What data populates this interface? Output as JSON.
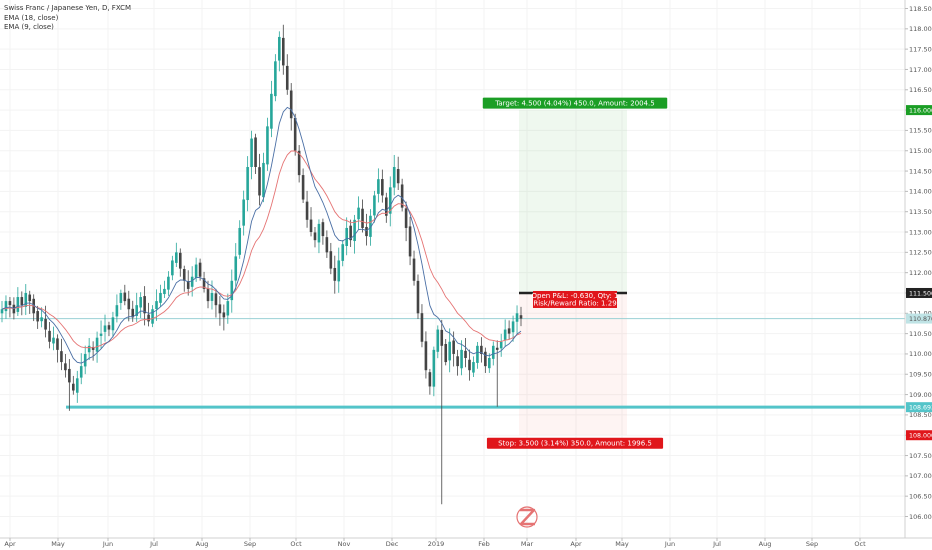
{
  "legend": {
    "symbol": "Swiss Franc / Japanese Yen, D, FXCM",
    "ema1": "EMA (18, close)",
    "ema2": "EMA (9, close)"
  },
  "colors": {
    "up": "#26a69a",
    "down": "#444444",
    "ema18": "#e57373",
    "ema9": "#4a6fa5",
    "target": "#1b9e25",
    "stop": "#e0161b",
    "support": "#53c4c9",
    "current_line": "#9ad1d4"
  },
  "chart_data": {
    "type": "candlestick",
    "x_ticks": [
      "Apr",
      "May",
      "Jun",
      "Jul",
      "Aug",
      "Sep",
      "Oct",
      "Nov",
      "Dec",
      "2019",
      "Feb",
      "Mar",
      "Apr",
      "May",
      "Jun",
      "Jul",
      "Aug",
      "Sep",
      "Oct"
    ],
    "y_ticks": [
      "106.000",
      "106.500",
      "107.000",
      "107.500",
      "108.000",
      "108.500",
      "109.000",
      "109.500",
      "110.000",
      "110.500",
      "111.000",
      "111.500",
      "112.000",
      "112.500",
      "113.000",
      "113.500",
      "114.000",
      "114.500",
      "115.000",
      "115.500",
      "116.000",
      "116.500",
      "117.000",
      "117.500",
      "118.000",
      "118.500"
    ],
    "ylim": [
      105.75,
      118.75
    ],
    "series": [
      {
        "name": "Swiss Franc / Japanese Yen",
        "kind": "candles",
        "close": [
          111.1,
          111.3,
          111.2,
          111.0,
          111.4,
          111.2,
          111.5,
          111.3,
          111.0,
          110.8,
          110.9,
          110.6,
          110.3,
          110.4,
          110.1,
          109.8,
          109.6,
          109.3,
          109.1,
          109.4,
          109.7,
          110.0,
          110.2,
          110.1,
          110.4,
          110.5,
          110.7,
          110.6,
          110.9,
          111.2,
          111.5,
          111.3,
          111.1,
          110.9,
          111.2,
          111.4,
          111.0,
          110.8,
          111.1,
          111.3,
          111.5,
          111.6,
          111.9,
          112.3,
          112.5,
          112.1,
          111.8,
          111.6,
          111.9,
          112.2,
          111.9,
          111.6,
          111.3,
          111.5,
          111.2,
          111.0,
          110.9,
          111.3,
          111.8,
          112.4,
          113.1,
          113.8,
          114.6,
          115.3,
          114.6,
          113.9,
          114.7,
          115.6,
          116.4,
          117.2,
          117.8,
          117.1,
          116.5,
          115.8,
          115.0,
          114.4,
          113.8,
          113.3,
          113.0,
          112.8,
          113.2,
          112.9,
          112.5,
          112.1,
          111.8,
          112.3,
          112.7,
          113.1,
          112.8,
          113.3,
          113.6,
          113.1,
          112.9,
          113.4,
          113.9,
          114.3,
          113.9,
          113.4,
          114.1,
          114.6,
          114.2,
          113.6,
          113.1,
          112.4,
          111.8,
          111.0,
          110.3,
          109.6,
          109.2,
          110.1,
          110.6,
          110.2,
          109.8,
          110.3,
          110.0,
          109.7,
          110.1,
          109.9,
          109.6,
          109.8,
          110.2,
          110.0,
          109.7,
          109.9,
          110.2,
          110.1,
          110.3,
          110.6,
          110.5,
          110.8,
          111.0,
          110.87
        ]
      },
      {
        "name": "EMA (18, close)",
        "kind": "line",
        "color": "#e57373"
      },
      {
        "name": "EMA (9, close)",
        "kind": "line",
        "color": "#4a6fa5"
      }
    ],
    "annotations": {
      "target_label": "Target: 4.500 (4.04%) 450.0, Amount: 2004.5",
      "stop_label": "Stop: 3.500 (3.14%) 350.0, Amount: 1996.5",
      "pnl_label": "Open P&L: -0.630, Qty: 1",
      "rr_label": "Risk/Reward Ratio: 1.29",
      "entry_price": 111.5,
      "target_price": 116.0,
      "stop_price": 108.0,
      "current_price": 110.87,
      "support_price": 108.69,
      "tag_target": "116.000",
      "tag_entry": "111.500",
      "tag_current": "110.870",
      "tag_support": "108.693",
      "tag_stop": "108.000"
    }
  }
}
